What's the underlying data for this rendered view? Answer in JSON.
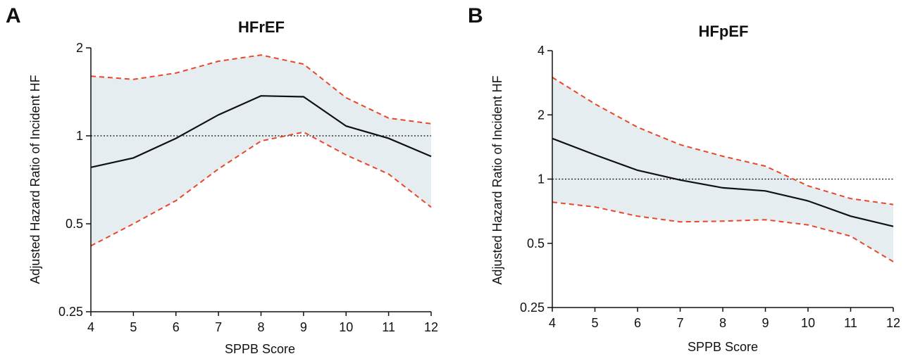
{
  "chart_data": [
    {
      "panel_label": "A",
      "type": "line",
      "title": "HFrEF",
      "xlabel": "SPPB Score",
      "ylabel": "Adjusted Hazard Ratio of Incident HF",
      "yscale": "log2",
      "ylim": [
        0.25,
        2
      ],
      "yticks": [
        0.25,
        0.5,
        1,
        2
      ],
      "ytick_labels": [
        "0.25",
        "0.5",
        "1",
        "2"
      ],
      "xlim": [
        4,
        12
      ],
      "xticks": [
        4,
        5,
        6,
        7,
        8,
        9,
        10,
        11,
        12
      ],
      "reference_line": 1,
      "x": [
        4,
        5,
        6,
        7,
        8,
        9,
        10,
        11,
        12
      ],
      "series": [
        {
          "role": "estimate",
          "color": "#111111",
          "style": "solid",
          "values": [
            0.78,
            0.84,
            0.98,
            1.18,
            1.37,
            1.36,
            1.08,
            0.98,
            0.85
          ]
        },
        {
          "role": "upper",
          "color": "#e8472a",
          "style": "dashed",
          "values": [
            1.6,
            1.56,
            1.64,
            1.8,
            1.89,
            1.76,
            1.35,
            1.15,
            1.1
          ]
        },
        {
          "role": "lower",
          "color": "#e8472a",
          "style": "dashed",
          "values": [
            0.42,
            0.5,
            0.6,
            0.77,
            0.96,
            1.03,
            0.86,
            0.74,
            0.57
          ]
        }
      ]
    },
    {
      "panel_label": "B",
      "type": "line",
      "title": "HFpEF",
      "xlabel": "SPPB Score",
      "ylabel": "Adjusted Hazard Ratio of Incident HF",
      "yscale": "log2",
      "ylim": [
        0.25,
        4
      ],
      "yticks": [
        0.25,
        0.5,
        1,
        2,
        4
      ],
      "ytick_labels": [
        "0.25",
        "0.5",
        "1",
        "2",
        "4"
      ],
      "xlim": [
        4,
        12
      ],
      "xticks": [
        4,
        5,
        6,
        7,
        8,
        9,
        10,
        11,
        12
      ],
      "reference_line": 1,
      "x": [
        4,
        5,
        6,
        7,
        8,
        9,
        10,
        11,
        12
      ],
      "series": [
        {
          "role": "estimate",
          "color": "#111111",
          "style": "solid",
          "values": [
            1.55,
            1.3,
            1.1,
            0.99,
            0.91,
            0.88,
            0.79,
            0.67,
            0.6
          ]
        },
        {
          "role": "upper",
          "color": "#e8472a",
          "style": "dashed",
          "values": [
            3.0,
            2.25,
            1.75,
            1.45,
            1.28,
            1.15,
            0.93,
            0.81,
            0.76
          ]
        },
        {
          "role": "lower",
          "color": "#e8472a",
          "style": "dashed",
          "values": [
            0.78,
            0.74,
            0.67,
            0.63,
            0.635,
            0.645,
            0.61,
            0.54,
            0.41
          ]
        }
      ]
    }
  ],
  "colors": {
    "band_fill": "#e6edf1",
    "estimate": "#111111",
    "ci": "#e8472a",
    "reference": "#111111"
  }
}
